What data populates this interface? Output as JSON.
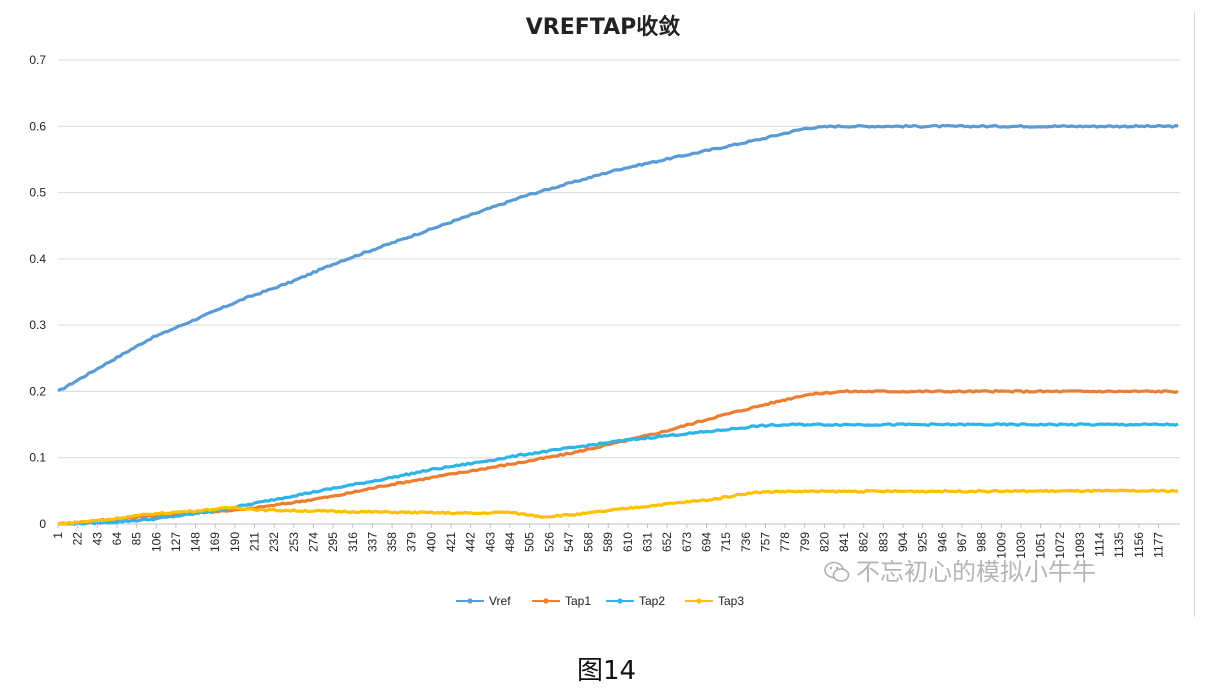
{
  "chart_data": {
    "type": "line",
    "title": "VREFTAP收敛",
    "xlabel": "",
    "ylabel": "",
    "ylim": [
      0,
      0.7
    ],
    "yticks": [
      "0",
      "0.1",
      "0.2",
      "0.3",
      "0.4",
      "0.5",
      "0.6",
      "0.7"
    ],
    "x_tick_labels": [
      "1",
      "22",
      "43",
      "64",
      "85",
      "106",
      "127",
      "148",
      "169",
      "190",
      "211",
      "232",
      "253",
      "274",
      "295",
      "316",
      "337",
      "358",
      "379",
      "400",
      "421",
      "442",
      "463",
      "484",
      "505",
      "526",
      "547",
      "568",
      "589",
      "610",
      "631",
      "652",
      "673",
      "694",
      "715",
      "736",
      "757",
      "778",
      "799",
      "820",
      "841",
      "862",
      "883",
      "904",
      "925",
      "946",
      "967",
      "988",
      "1009",
      "1030",
      "1051",
      "1072",
      "1093",
      "1114",
      "1135",
      "1156",
      "1177"
    ],
    "x_range": [
      1,
      1200
    ],
    "grid": "horizontal",
    "legend_position": "bottom",
    "series": [
      {
        "name": "Vref",
        "color": "#5B9BD5",
        "points": [
          [
            1,
            0.2
          ],
          [
            50,
            0.24
          ],
          [
            100,
            0.28
          ],
          [
            150,
            0.31
          ],
          [
            200,
            0.34
          ],
          [
            250,
            0.365
          ],
          [
            300,
            0.395
          ],
          [
            350,
            0.42
          ],
          [
            400,
            0.445
          ],
          [
            450,
            0.47
          ],
          [
            500,
            0.495
          ],
          [
            550,
            0.515
          ],
          [
            600,
            0.535
          ],
          [
            650,
            0.55
          ],
          [
            700,
            0.565
          ],
          [
            750,
            0.58
          ],
          [
            800,
            0.597
          ],
          [
            830,
            0.6
          ],
          [
            1200,
            0.6
          ]
        ]
      },
      {
        "name": "Tap1",
        "color": "#ED7D31",
        "points": [
          [
            1,
            0.0
          ],
          [
            100,
            0.012
          ],
          [
            200,
            0.022
          ],
          [
            250,
            0.032
          ],
          [
            300,
            0.043
          ],
          [
            350,
            0.058
          ],
          [
            400,
            0.07
          ],
          [
            450,
            0.082
          ],
          [
            500,
            0.094
          ],
          [
            550,
            0.107
          ],
          [
            600,
            0.123
          ],
          [
            650,
            0.14
          ],
          [
            700,
            0.16
          ],
          [
            750,
            0.178
          ],
          [
            800,
            0.195
          ],
          [
            840,
            0.2
          ],
          [
            1200,
            0.2
          ]
        ]
      },
      {
        "name": "Tap2",
        "color": "#2EB4E8",
        "points": [
          [
            1,
            0.0
          ],
          [
            50,
            0.002
          ],
          [
            100,
            0.007
          ],
          [
            150,
            0.016
          ],
          [
            200,
            0.028
          ],
          [
            250,
            0.042
          ],
          [
            300,
            0.055
          ],
          [
            350,
            0.068
          ],
          [
            400,
            0.082
          ],
          [
            450,
            0.093
          ],
          [
            500,
            0.105
          ],
          [
            550,
            0.115
          ],
          [
            600,
            0.125
          ],
          [
            650,
            0.133
          ],
          [
            700,
            0.14
          ],
          [
            750,
            0.148
          ],
          [
            790,
            0.15
          ],
          [
            1200,
            0.15
          ]
        ]
      },
      {
        "name": "Tap3",
        "color": "#FFC000",
        "points": [
          [
            1,
            0.0
          ],
          [
            50,
            0.006
          ],
          [
            100,
            0.015
          ],
          [
            150,
            0.02
          ],
          [
            190,
            0.025
          ],
          [
            220,
            0.021
          ],
          [
            300,
            0.019
          ],
          [
            400,
            0.017
          ],
          [
            450,
            0.016
          ],
          [
            480,
            0.018
          ],
          [
            520,
            0.011
          ],
          [
            560,
            0.015
          ],
          [
            600,
            0.022
          ],
          [
            650,
            0.03
          ],
          [
            700,
            0.037
          ],
          [
            740,
            0.047
          ],
          [
            770,
            0.049
          ],
          [
            1200,
            0.05
          ]
        ]
      }
    ]
  },
  "watermark": {
    "text": "不忘初心的模拟小牛牛"
  },
  "caption": "图14"
}
